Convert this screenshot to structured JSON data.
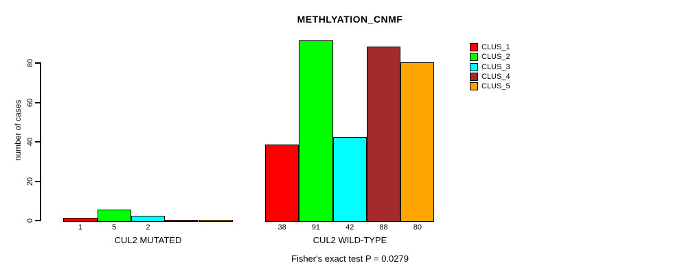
{
  "chart": {
    "title": "METHLYATION_CNMF",
    "ylabel": "number of cases",
    "footer": "Fisher's exact test P = 0.0279"
  },
  "chart_data": {
    "type": "bar",
    "title": "METHLYATION_CNMF",
    "xlabel": "",
    "ylabel": "number of cases",
    "categories": [
      "CUL2 MUTATED",
      "CUL2 WILD-TYPE"
    ],
    "series": [
      {
        "name": "CLUS_1",
        "color": "#FF0000",
        "values": [
          1,
          38
        ]
      },
      {
        "name": "CLUS_2",
        "color": "#00FF00",
        "values": [
          5,
          91
        ]
      },
      {
        "name": "CLUS_3",
        "color": "#00FFFF",
        "values": [
          2,
          42
        ]
      },
      {
        "name": "CLUS_4",
        "color": "#A52A2A",
        "values": [
          0,
          88
        ]
      },
      {
        "name": "CLUS_5",
        "color": "#FFA500",
        "values": [
          0,
          80
        ]
      }
    ],
    "bar_value_labels": [
      [
        "1",
        "5",
        "2"
      ],
      [
        "38",
        "91",
        "42",
        "88",
        "80"
      ]
    ],
    "yticks": [
      0,
      20,
      40,
      60,
      80
    ],
    "ylim": [
      0,
      91
    ],
    "grid": false,
    "legend_position": "right",
    "legend_entries": [
      "CLUS_1",
      "CLUS_2",
      "CLUS_3",
      "CLUS_4",
      "CLUS_5"
    ],
    "annotation": "Fisher's exact test P = 0.0279"
  }
}
